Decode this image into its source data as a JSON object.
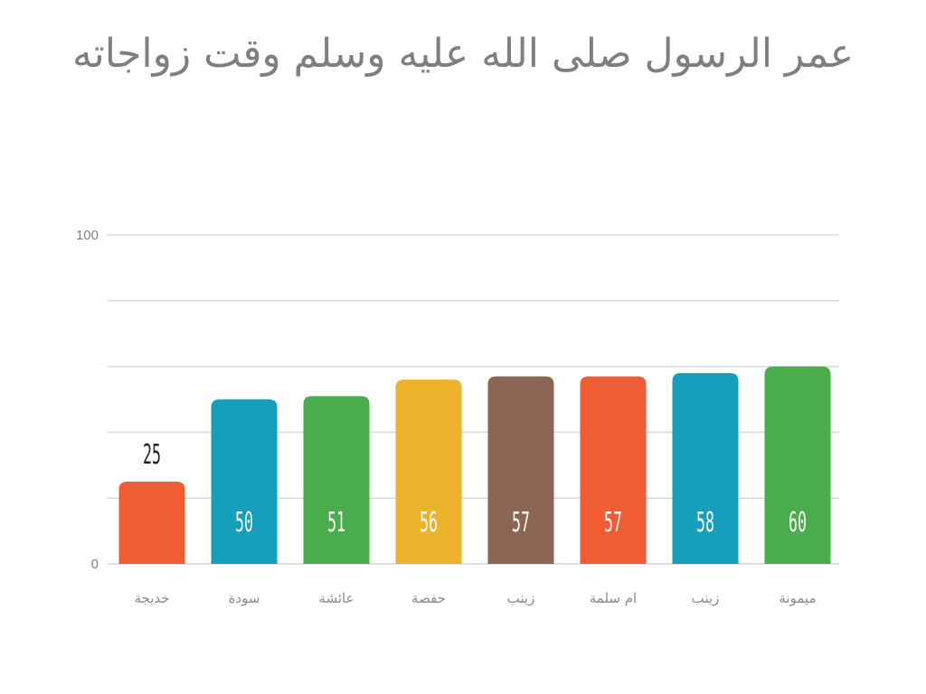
{
  "chart_data": {
    "type": "bar",
    "title": "عمر الرسول صلى الله عليه وسلم وقت زواجاته",
    "xlabel": "",
    "ylabel": "",
    "categories": [
      "خديجة",
      "سودة",
      "عائشة",
      "حفصة",
      "زينب",
      "ام سلمة",
      "زينب",
      "ميمونة"
    ],
    "values": [
      25,
      50,
      51,
      56,
      57,
      57,
      58,
      60
    ],
    "data_labels": [
      "25",
      "50",
      "51",
      "56",
      "57",
      "57",
      "58",
      "60"
    ],
    "bar_colors": [
      "#f05d35",
      "#159fbd",
      "#48ad4a",
      "#ecb22c",
      "#8b6653",
      "#f05d35",
      "#159fbd",
      "#48ad4a"
    ],
    "ylim": [
      0,
      100
    ],
    "yticks": [
      0,
      100
    ],
    "ytick_labels": [
      "0",
      "100"
    ],
    "grid": true,
    "legend": "none"
  }
}
